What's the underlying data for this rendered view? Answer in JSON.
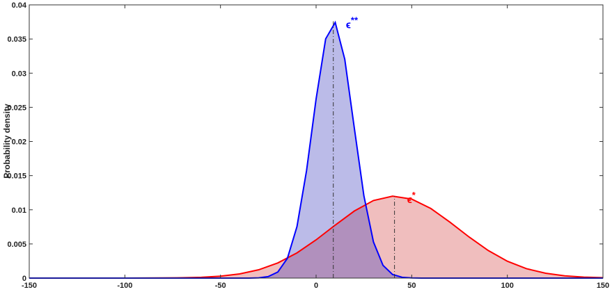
{
  "chart_data": {
    "type": "area",
    "ylabel": "Probability density",
    "xlim": [
      -150,
      150
    ],
    "ylim": [
      0,
      0.04
    ],
    "xticks": [
      -150,
      -100,
      -50,
      0,
      50,
      100,
      150
    ],
    "yticks": [
      0,
      0.005,
      0.01,
      0.015,
      0.02,
      0.025,
      0.03,
      0.035,
      0.04
    ],
    "series": [
      {
        "color": "#ff0000",
        "fill": "rgba(205,40,40,0.3)",
        "x": [
          -150,
          -100,
          -90,
          -80,
          -70,
          -60,
          -50,
          -40,
          -30,
          -20,
          -10,
          0,
          10,
          20,
          30,
          40,
          50,
          60,
          70,
          80,
          90,
          100,
          110,
          120,
          130,
          140,
          150
        ],
        "values": [
          0,
          0,
          1e-05,
          2e-05,
          5e-05,
          0.00012,
          0.00028,
          0.00061,
          0.00122,
          0.00222,
          0.00369,
          0.0056,
          0.00776,
          0.00982,
          0.01136,
          0.012,
          0.01157,
          0.01019,
          0.00819,
          0.00602,
          0.00404,
          0.00247,
          0.00138,
          0.00071,
          0.00033,
          0.00014,
          6e-05
        ]
      },
      {
        "color": "#0000ff",
        "fill": "rgba(60,60,190,0.35)",
        "x": [
          -150,
          -35,
          -30,
          -25,
          -20,
          -15,
          -10,
          -5,
          0,
          5,
          10,
          15,
          20,
          25,
          30,
          35,
          40,
          45,
          50,
          55,
          150
        ],
        "values": [
          0,
          0,
          4e-05,
          0.00022,
          0.00089,
          0.0029,
          0.00754,
          0.01572,
          0.02622,
          0.03502,
          0.03743,
          0.03203,
          0.02194,
          0.01204,
          0.00529,
          0.00186,
          0.00052,
          0.00012,
          2e-05,
          0,
          0
        ]
      }
    ],
    "annotations": [
      {
        "symbol": "ϵ",
        "sup": "**",
        "x": 9,
        "y": 0.0376,
        "color": "#0000ff"
      },
      {
        "symbol": "ϵ",
        "sup": "*",
        "x": 41,
        "y": 0.012,
        "color": "#ff0000"
      }
    ]
  }
}
